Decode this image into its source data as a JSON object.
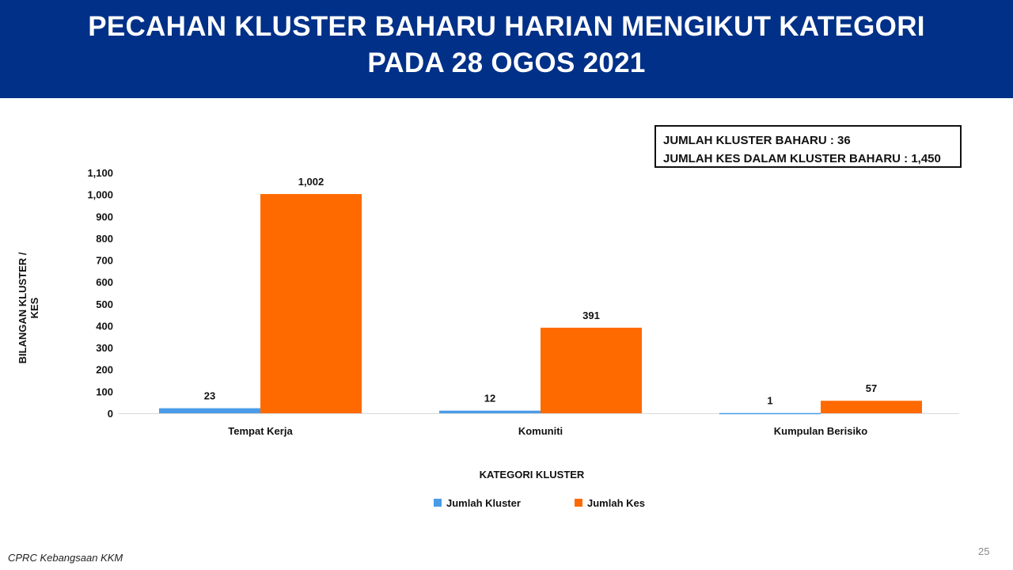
{
  "header": {
    "title_line1": "PECAHAN KLUSTER BAHARU HARIAN MENGIKUT KATEGORI",
    "title_line2": "PADA 28 OGOS 2021"
  },
  "infobox": {
    "line1": "JUMLAH KLUSTER BAHARU : 36",
    "line2": "JUMLAH KES DALAM KLUSTER BAHARU : 1,450"
  },
  "chart_data": {
    "type": "bar",
    "categories": [
      "Tempat Kerja",
      "Komuniti",
      "Kumpulan Berisiko"
    ],
    "series": [
      {
        "name": "Jumlah Kluster",
        "values": [
          23,
          12,
          1
        ],
        "color": "#4A9CE8"
      },
      {
        "name": "Jumlah Kes",
        "values": [
          1002,
          391,
          57
        ],
        "color": "#FF6A00"
      }
    ],
    "data_labels": [
      [
        "23",
        "12",
        "1"
      ],
      [
        "1,002",
        "391",
        "57"
      ]
    ],
    "xlabel": "KATEGORI KLUSTER",
    "ylabel": "BILANGAN KLUSTER / KES",
    "ylim": [
      0,
      1100
    ],
    "yticks": [
      0,
      100,
      200,
      300,
      400,
      500,
      600,
      700,
      800,
      900,
      1000,
      1100
    ],
    "ytick_labels": [
      "0",
      "100",
      "200",
      "300",
      "400",
      "500",
      "600",
      "700",
      "800",
      "900",
      "1,000",
      "1,100"
    ],
    "grid": false,
    "legend_position": "bottom"
  },
  "footer": {
    "source": "CPRC Kebangsaan KKM",
    "page_number": "25"
  }
}
